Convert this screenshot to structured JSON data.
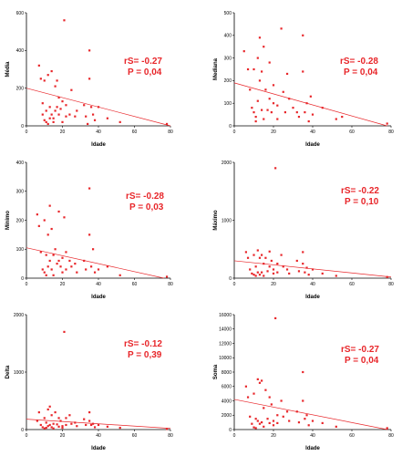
{
  "colors": {
    "points": "#e8262a",
    "fit": "#e8262a",
    "stat": "#e8262a",
    "axis": "#000000"
  },
  "chart_data": [
    {
      "type": "scatter",
      "title": "",
      "xlabel": "Idade",
      "ylabel": "Média",
      "xlim": [
        0,
        80
      ],
      "ylim": [
        0,
        600
      ],
      "xticks": [
        "0",
        "20",
        "40",
        "60",
        "80"
      ],
      "yticks": [
        "0",
        "200",
        "400",
        "600"
      ],
      "stat_r": "rS= -0.27",
      "stat_p": "P = 0,04",
      "fit": {
        "x": [
          0,
          80
        ],
        "y": [
          200,
          0
        ]
      },
      "points": {
        "x": [
          7,
          8,
          9,
          9,
          10,
          10,
          11,
          11,
          12,
          12,
          13,
          13,
          14,
          14,
          15,
          15,
          16,
          16,
          17,
          17,
          18,
          18,
          19,
          20,
          20,
          21,
          22,
          22,
          24,
          25,
          27,
          28,
          32,
          33,
          34,
          35,
          35,
          36,
          37,
          38,
          40,
          45,
          52,
          78
        ],
        "y": [
          320,
          250,
          120,
          60,
          240,
          30,
          20,
          80,
          270,
          10,
          100,
          40,
          290,
          60,
          40,
          20,
          210,
          80,
          240,
          100,
          150,
          60,
          90,
          20,
          130,
          560,
          50,
          110,
          60,
          190,
          50,
          80,
          110,
          50,
          10,
          400,
          250,
          100,
          60,
          30,
          100,
          40,
          20,
          10
        ]
      }
    },
    {
      "type": "scatter",
      "title": "",
      "xlabel": "Idade",
      "ylabel": "Mediana",
      "xlim": [
        0,
        80
      ],
      "ylim": [
        0,
        500
      ],
      "xticks": [
        "0",
        "20",
        "40",
        "60",
        "80"
      ],
      "yticks": [
        "0",
        "100",
        "200",
        "300",
        "400",
        "500"
      ],
      "stat_r": "rS= -0.28",
      "stat_p": "P = 0,04",
      "fit": {
        "x": [
          0,
          80
        ],
        "y": [
          190,
          -5
        ]
      },
      "points": {
        "x": [
          5,
          7,
          8,
          9,
          10,
          10,
          11,
          11,
          12,
          12,
          13,
          13,
          14,
          14,
          15,
          15,
          16,
          17,
          18,
          18,
          19,
          20,
          20,
          22,
          22,
          24,
          25,
          26,
          27,
          28,
          30,
          32,
          33,
          35,
          35,
          36,
          37,
          38,
          39,
          40,
          45,
          52,
          55,
          78
        ],
        "y": [
          330,
          250,
          160,
          80,
          250,
          60,
          40,
          20,
          300,
          110,
          390,
          200,
          240,
          70,
          350,
          30,
          160,
          70,
          280,
          120,
          60,
          100,
          180,
          90,
          30,
          430,
          150,
          60,
          230,
          120,
          80,
          60,
          40,
          240,
          400,
          60,
          100,
          20,
          130,
          50,
          80,
          30,
          40,
          10
        ]
      }
    },
    {
      "type": "scatter",
      "title": "",
      "xlabel": "Idade",
      "ylabel": "Mínimo",
      "xlim": [
        0,
        80
      ],
      "ylim": [
        0,
        400
      ],
      "xticks": [
        "0",
        "20",
        "40",
        "60",
        "80"
      ],
      "yticks": [
        "0",
        "100",
        "200",
        "300",
        "400"
      ],
      "stat_r": "rS= -0.28",
      "stat_p": "P = 0,03",
      "fit": {
        "x": [
          0,
          80
        ],
        "y": [
          105,
          -5
        ]
      },
      "points": {
        "x": [
          6,
          7,
          8,
          9,
          10,
          10,
          11,
          11,
          12,
          12,
          13,
          13,
          14,
          14,
          15,
          15,
          16,
          17,
          18,
          18,
          19,
          20,
          20,
          21,
          22,
          22,
          24,
          25,
          27,
          28,
          32,
          33,
          35,
          35,
          36,
          37,
          38,
          40,
          45,
          52,
          78
        ],
        "y": [
          220,
          180,
          90,
          30,
          200,
          20,
          10,
          80,
          150,
          40,
          250,
          60,
          170,
          30,
          80,
          10,
          100,
          50,
          230,
          60,
          40,
          70,
          20,
          210,
          90,
          30,
          60,
          40,
          50,
          20,
          60,
          30,
          310,
          150,
          40,
          100,
          20,
          30,
          40,
          10,
          5
        ]
      }
    },
    {
      "type": "scatter",
      "title": "",
      "xlabel": "Idade",
      "ylabel": "Máximo",
      "xlim": [
        0,
        80
      ],
      "ylim": [
        0,
        2000
      ],
      "xticks": [
        "0",
        "20",
        "40",
        "60",
        "80"
      ],
      "yticks": [
        "0",
        "1000",
        "2000"
      ],
      "stat_r": "rS= -0.22",
      "stat_p": "P = 0,10",
      "fit": {
        "x": [
          0,
          80
        ],
        "y": [
          300,
          20
        ]
      },
      "points": {
        "x": [
          6,
          7,
          8,
          9,
          10,
          10,
          11,
          11,
          12,
          12,
          13,
          13,
          14,
          14,
          15,
          15,
          16,
          17,
          18,
          18,
          19,
          20,
          20,
          21,
          22,
          22,
          24,
          25,
          27,
          28,
          32,
          33,
          35,
          35,
          36,
          37,
          38,
          40,
          45,
          52,
          78
        ],
        "y": [
          450,
          350,
          150,
          80,
          400,
          60,
          40,
          200,
          480,
          100,
          350,
          60,
          400,
          100,
          250,
          40,
          350,
          120,
          460,
          200,
          300,
          150,
          80,
          1900,
          250,
          100,
          400,
          200,
          150,
          80,
          300,
          120,
          450,
          250,
          100,
          180,
          60,
          150,
          80,
          40,
          20
        ]
      }
    },
    {
      "type": "scatter",
      "title": "",
      "xlabel": "Idade",
      "ylabel": "Delta",
      "xlim": [
        0,
        80
      ],
      "ylim": [
        0,
        2000
      ],
      "xticks": [
        "0",
        "20",
        "40",
        "60",
        "80"
      ],
      "yticks": [
        "0",
        "1000",
        "2000"
      ],
      "stat_r": "rS= -0.12",
      "stat_p": "P = 0,39",
      "fit": {
        "x": [
          0,
          80
        ],
        "y": [
          180,
          20
        ]
      },
      "points": {
        "x": [
          6,
          7,
          8,
          9,
          10,
          10,
          11,
          11,
          12,
          12,
          13,
          13,
          14,
          14,
          15,
          15,
          16,
          17,
          18,
          18,
          19,
          20,
          20,
          21,
          22,
          22,
          24,
          25,
          27,
          28,
          32,
          33,
          35,
          35,
          36,
          37,
          38,
          40,
          45,
          52,
          78
        ],
        "y": [
          150,
          300,
          80,
          40,
          200,
          20,
          30,
          120,
          350,
          60,
          400,
          80,
          250,
          40,
          100,
          20,
          300,
          90,
          200,
          50,
          150,
          60,
          30,
          1700,
          200,
          80,
          250,
          100,
          120,
          60,
          180,
          80,
          300,
          150,
          80,
          100,
          40,
          80,
          50,
          30,
          10
        ]
      }
    },
    {
      "type": "scatter",
      "title": "",
      "xlabel": "Idade",
      "ylabel": "Soma",
      "xlim": [
        0,
        80
      ],
      "ylim": [
        0,
        16000
      ],
      "xticks": [
        "0",
        "20",
        "40",
        "60",
        "80"
      ],
      "yticks": [
        "0",
        "2000",
        "4000",
        "6000",
        "8000",
        "10000",
        "12000",
        "14000",
        "16000"
      ],
      "stat_r": "rS= -0.27",
      "stat_p": "P = 0,04",
      "fit": {
        "x": [
          0,
          80
        ],
        "y": [
          4200,
          -100
        ]
      },
      "points": {
        "x": [
          6,
          7,
          8,
          9,
          10,
          10,
          11,
          11,
          12,
          12,
          13,
          13,
          14,
          14,
          15,
          15,
          16,
          17,
          18,
          18,
          19,
          20,
          20,
          21,
          22,
          22,
          24,
          25,
          27,
          28,
          32,
          33,
          35,
          35,
          36,
          37,
          38,
          40,
          45,
          52,
          78
        ],
        "y": [
          6000,
          4500,
          1800,
          800,
          5000,
          300,
          200,
          1500,
          7000,
          1200,
          6500,
          800,
          6800,
          1000,
          3000,
          400,
          5500,
          1500,
          4500,
          900,
          3500,
          1200,
          600,
          15500,
          2000,
          900,
          4000,
          1800,
          2500,
          1200,
          2500,
          1000,
          8000,
          4000,
          1500,
          2000,
          600,
          1200,
          900,
          400,
          200
        ]
      }
    }
  ]
}
